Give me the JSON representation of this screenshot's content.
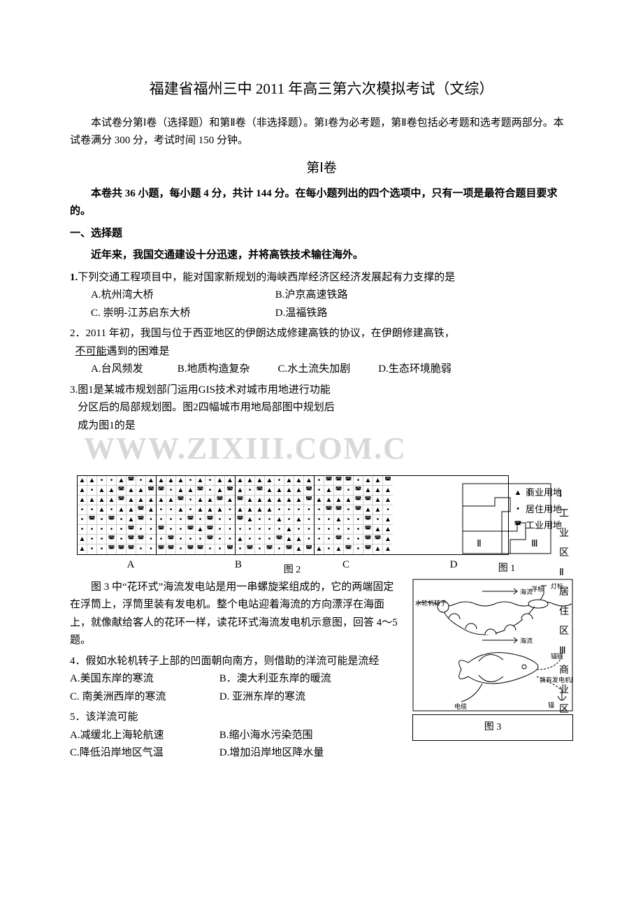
{
  "title": "福建省福州三中 2011 年高三第六次模拟考试（文综）",
  "intro": "本试卷分第Ⅰ卷（选择题）和第Ⅱ卷（非选择题）。第I卷为必考题，第Ⅱ卷包括必考题和选考题两部分。本试卷满分 300 分，考试时间 150 分钟。",
  "section1_header": "第Ⅰ卷",
  "section1_note": "本卷共 36 小题，每小题 4 分，共计 144 分。在每小题列出的四个选项中，只有一项是最符合题目要求的。",
  "mcq_heading": "一、选择题",
  "context1": "近年来，我国交通建设十分迅速，并将高铁技术输往海外。",
  "q1_stem_a": "1.",
  "q1_stem_b": "下列交通工程项目中，能对国家新规划的海峡西岸经济区经济发展起有力支撑的是",
  "q1_opts": {
    "A": "A.杭州湾大桥",
    "B": "B.沪京高速铁路",
    "C": "C. 崇明-江苏启东大桥",
    "D": "D.温福铁路"
  },
  "q2_stem_a": "2．2011 年初，我国与位于西亚地区的伊朗达成修建高铁的协议，在伊朗修建高铁，",
  "q2_stem_b": "不可能",
  "q2_stem_c": "遇到的困难是",
  "q2_opts": {
    "A": "A.台风频发",
    "B": "B.地质构造复杂",
    "C": "C.水土流失加剧",
    "D": "D.生态环境脆弱"
  },
  "q3": {
    "l1": "3.图1是某城市规划部门运用GIS技术对城市用地进行功能",
    "l2": "分区后的局部规划图。图2四幅城市用地局部图中规划后",
    "l3": "成为图1的是"
  },
  "fig1": {
    "labels": {
      "I": "Ⅰ",
      "II": "Ⅱ",
      "III": "Ⅲ"
    },
    "legend": {
      "I": "Ⅰ 工业区",
      "II": "Ⅱ 居住区",
      "III": "Ⅲ 商业区"
    },
    "caption": "图 1",
    "stroke": "#000000",
    "fill": "#ffffff"
  },
  "fig2": {
    "panel_labels": [
      "A",
      "B",
      "C",
      "D"
    ],
    "caption": "图 2",
    "symbols": {
      "commercial": "▲",
      "residential": "•",
      "industrial": "◚"
    },
    "legend": {
      "commercial": "商业用地",
      "residential": "居住用地",
      "industrial": "工业用地"
    },
    "panels": {
      "A": [
        "ccrrcirc",
        "crccicci",
        "cccciccc",
        "rrcrccic",
        "rirircir",
        "rrrrrirr",
        "crririir",
        "crriiirr"
      ],
      "B": [
        "cccrcrcc",
        "irccirci",
        "ccirccic",
        "rrcrcccr",
        "rrririrr",
        "irricirr",
        "rirrrirr",
        "iiriirri"
      ],
      "C": [
        "ccccrccc",
        "cricccci",
        "icccccci",
        "ccccrrrr",
        "icrrcrcr",
        "rrrrrcrr",
        "crrriccr",
        "riririci"
      ],
      "D": [
        "riiircci",
        "rciriccc",
        "cccciicc",
        "riiriccr",
        "rrcrrirc",
        "rrrrricc",
        "rrirriic",
        "crciricc"
      ]
    }
  },
  "context45_a": "图 3 中“花环式”海流发电站是用一串螺旋桨组成的，它的两端固定在浮筒上，浮筒里装有发电机。整个电站迎着海流的方向漂浮在海面上，就像献给客人的花环一样，读花环式海流发电机示意图，回答 4～5 题。",
  "q4_stem": "4．假如水轮机转子上部的凹面朝向南方，则借助的洋流可能是流经",
  "q4_opts": {
    "A": "A.美国东岸的寒流",
    "B": "B．澳大利亚东岸的暖流",
    "C": "C. 南美洲西岸的寒流",
    "D": "D. 亚洲东岸的寒流"
  },
  "q5_stem": "5．该洋流可能",
  "q5_opts": {
    "A": "A.减缓北上海轮航速",
    "B": "B.缩小海水污染范围",
    "C": "C.降低沿岸地区气温",
    "D": "D.增加沿岸地区降水量"
  },
  "fig3": {
    "caption": "图 3",
    "labels": {
      "turbine": "水轮机转子",
      "current": "海流",
      "float": "浮标",
      "light": "灯标",
      "anchor_chain": "锚链",
      "gen_float": "装有发电机的浮筒",
      "anchor": "锚",
      "cable": "电缆"
    },
    "stroke": "#000000",
    "fill": "#ffffff",
    "font_size": 9
  },
  "watermark": "WWW.ZIXIII.COM.C"
}
